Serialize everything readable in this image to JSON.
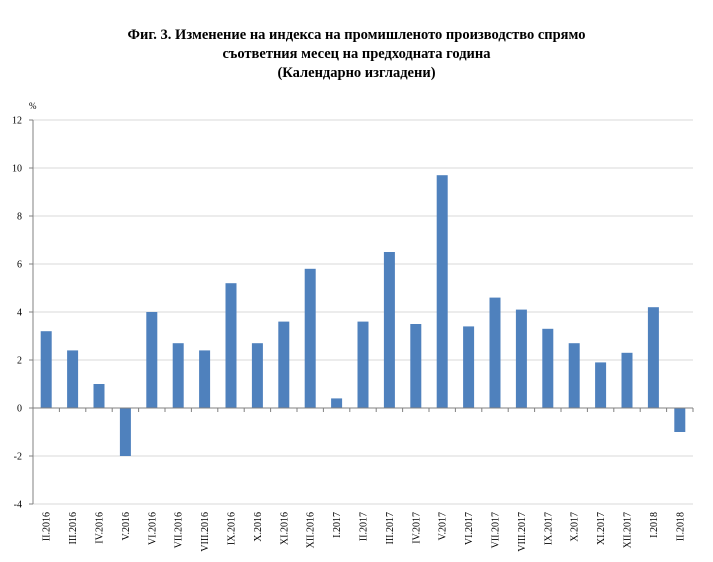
{
  "chart_data": {
    "type": "bar",
    "title_lines": [
      "Фиг. 3. Изменение на индекса на промишленото производство спрямо",
      "съответния месец на предходната година",
      "(Календарно изгладени)"
    ],
    "ylabel": "%",
    "xlabel": "",
    "ylim": [
      -4,
      12
    ],
    "yticks": [
      -4,
      -2,
      0,
      2,
      4,
      6,
      8,
      10,
      12
    ],
    "grid": true,
    "legend": "none",
    "bar_color": "#4f81bd",
    "grid_color": "#d9d9d9",
    "categories": [
      "II.2016",
      "III.2016",
      "IV.2016",
      "V.2016",
      "VI.2016",
      "VII.2016",
      "VIII.2016",
      "IX.2016",
      "X.2016",
      "XI.2016",
      "XII.2016",
      "I.2017",
      "II.2017",
      "III.2017",
      "IV.2017",
      "V.2017",
      "VI.2017",
      "VII.2017",
      "VIII.2017",
      "IX.2017",
      "X.2017",
      "XI.2017",
      "XII.2017",
      "I.2018",
      "II.2018"
    ],
    "values": [
      3.2,
      2.4,
      1.0,
      -2.0,
      4.0,
      2.7,
      2.4,
      5.2,
      2.7,
      3.6,
      5.8,
      0.4,
      3.6,
      6.5,
      3.5,
      9.7,
      3.4,
      4.6,
      4.1,
      3.3,
      2.7,
      1.9,
      2.3,
      4.2,
      -1.0
    ]
  }
}
